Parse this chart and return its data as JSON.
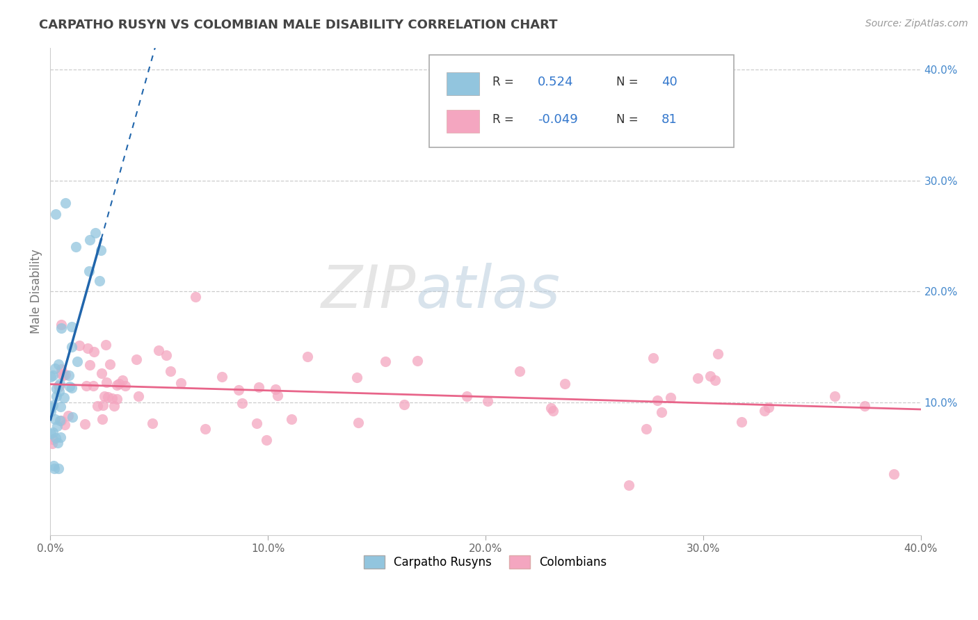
{
  "title": "CARPATHO RUSYN VS COLOMBIAN MALE DISABILITY CORRELATION CHART",
  "source": "Source: ZipAtlas.com",
  "ylabel": "Male Disability",
  "xlim": [
    0.0,
    0.4
  ],
  "ylim": [
    -0.02,
    0.42
  ],
  "yticks_right": [
    0.1,
    0.2,
    0.3,
    0.4
  ],
  "ytick_labels_right": [
    "10.0%",
    "20.0%",
    "30.0%",
    "40.0%"
  ],
  "xticks": [
    0.0,
    0.1,
    0.2,
    0.3,
    0.4
  ],
  "xtick_labels": [
    "0.0%",
    "10.0%",
    "20.0%",
    "30.0%",
    "40.0%"
  ],
  "blue_color": "#92C5DE",
  "pink_color": "#F4A6C0",
  "blue_line_color": "#2166AC",
  "pink_line_color": "#E8658A",
  "R_blue": 0.524,
  "N_blue": 40,
  "R_pink": -0.049,
  "N_pink": 81,
  "legend_label_blue": "Carpatho Rusyns",
  "legend_label_pink": "Colombians",
  "background_color": "#ffffff",
  "grid_color": "#cccccc",
  "title_color": "#444444",
  "watermark_zip_color": "#d8d8d8",
  "watermark_atlas_color": "#c8d8e8"
}
